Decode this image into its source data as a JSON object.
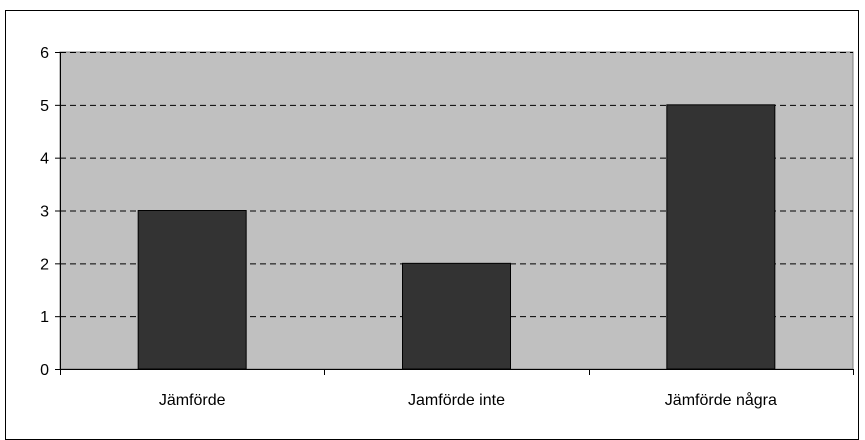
{
  "chart_data": {
    "type": "bar",
    "categories": [
      "Jämförde",
      "Jamförde inte",
      "Jämförde några"
    ],
    "values": [
      3,
      2,
      5
    ],
    "title": "",
    "xlabel": "",
    "ylabel": "",
    "ylim": [
      0,
      6
    ],
    "yticks": [
      "0",
      "1",
      "2",
      "3",
      "4",
      "5",
      "6"
    ],
    "grid": "dashed horizontal",
    "legend": "none",
    "colors": {
      "plot_background": "#c0c0c0",
      "bar_fill": "#333333",
      "bar_stroke": "#000000",
      "gridline": "#000000"
    }
  }
}
